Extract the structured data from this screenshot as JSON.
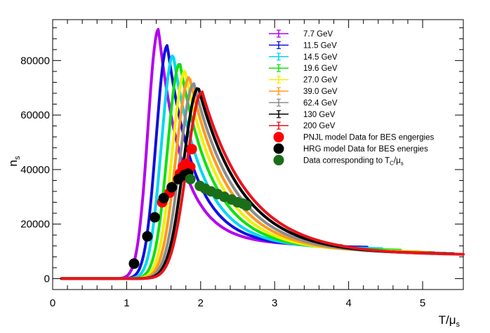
{
  "chart_data": {
    "type": "line",
    "xlabel": "T/μ_s",
    "xlabel_main": "T/μ",
    "xlabel_sub": "s",
    "ylabel": "n_s",
    "ylabel_main": "n",
    "ylabel_sub": "s",
    "xlim": [
      0,
      5.55
    ],
    "ylim": [
      -4000,
      95000
    ],
    "xticks": [
      0,
      1,
      2,
      3,
      4,
      5
    ],
    "yticks": [
      0,
      20000,
      40000,
      60000,
      80000
    ],
    "series": [
      {
        "name": "7.7 GeV",
        "color": "#b400f0",
        "peak_x": 1.43,
        "peak_y": 91500,
        "tail_end_x": 3.9,
        "tail_end_y": 11500
      },
      {
        "name": "11.5 GeV",
        "color": "#1010e0",
        "peak_x": 1.55,
        "peak_y": 85500,
        "tail_end_x": 4.25,
        "tail_end_y": 11000
      },
      {
        "name": "14.5 GeV",
        "color": "#00d8f0",
        "peak_x": 1.63,
        "peak_y": 82000,
        "tail_end_x": 4.45,
        "tail_end_y": 10500
      },
      {
        "name": "19.6 GeV",
        "color": "#10e010",
        "peak_x": 1.72,
        "peak_y": 79000,
        "tail_end_x": 4.7,
        "tail_end_y": 10000
      },
      {
        "name": "27.0 GeV",
        "color": "#f0f000",
        "peak_x": 1.79,
        "peak_y": 76000,
        "tail_end_x": 4.95,
        "tail_end_y": 9500
      },
      {
        "name": "39.0 GeV",
        "color": "#ff9a20",
        "peak_x": 1.85,
        "peak_y": 74000,
        "tail_end_x": 5.15,
        "tail_end_y": 9200
      },
      {
        "name": "62.4 GeV",
        "color": "#8c8c8c",
        "peak_x": 1.91,
        "peak_y": 71500,
        "tail_end_x": 5.3,
        "tail_end_y": 8900
      },
      {
        "name": "130 GeV",
        "color": "#000000",
        "peak_x": 1.97,
        "peak_y": 70000,
        "tail_end_x": 5.42,
        "tail_end_y": 8700
      },
      {
        "name": "200 GeV",
        "color": "#e8141b",
        "peak_x": 2.02,
        "peak_y": 68500,
        "tail_end_x": 5.55,
        "tail_end_y": 8500
      }
    ],
    "markers": [
      {
        "name": "PNJL model Data for BES engergies",
        "color": "#ff0000",
        "points": [
          [
            1.48,
            28000
          ],
          [
            1.58,
            31500
          ],
          [
            1.72,
            38500
          ],
          [
            1.76,
            41000
          ],
          [
            1.8,
            42000
          ],
          [
            1.86,
            41000
          ],
          [
            1.88,
            47500
          ]
        ]
      },
      {
        "name": "HRG model Data for BES energies",
        "color": "#000000",
        "points": [
          [
            1.1,
            5500
          ],
          [
            1.28,
            15500
          ],
          [
            1.38,
            22500
          ],
          [
            1.5,
            29500
          ],
          [
            1.61,
            33500
          ],
          [
            1.7,
            36500
          ],
          [
            1.78,
            38000
          ],
          [
            1.83,
            38500
          ]
        ]
      },
      {
        "name": "Data corresponding to T_C/μ_s",
        "color": "#1a6e1a",
        "points": [
          [
            1.86,
            36500
          ],
          [
            1.99,
            34000
          ],
          [
            2.06,
            33000
          ],
          [
            2.14,
            32000
          ],
          [
            2.23,
            31000
          ],
          [
            2.32,
            30000
          ],
          [
            2.42,
            29000
          ],
          [
            2.5,
            28000
          ],
          [
            2.57,
            27500
          ],
          [
            2.62,
            26800
          ]
        ]
      }
    ],
    "legend": {
      "placement": "top-right",
      "entries": [
        {
          "label": "7.7 GeV",
          "kind": "line",
          "color": "#b400f0"
        },
        {
          "label": "11.5 GeV",
          "kind": "line",
          "color": "#1010e0"
        },
        {
          "label": "14.5 GeV",
          "kind": "line",
          "color": "#00d8f0"
        },
        {
          "label": "19.6 GeV",
          "kind": "line",
          "color": "#10e010"
        },
        {
          "label": "27.0 GeV",
          "kind": "line",
          "color": "#f0f000"
        },
        {
          "label": "39.0 GeV",
          "kind": "line",
          "color": "#ff9a20"
        },
        {
          "label": "62.4 GeV",
          "kind": "line",
          "color": "#8c8c8c"
        },
        {
          "label": "130 GeV",
          "kind": "line",
          "color": "#000000"
        },
        {
          "label": "200 GeV",
          "kind": "line",
          "color": "#e8141b"
        },
        {
          "label": "PNJL model Data for BES engergies",
          "kind": "marker",
          "color": "#ff0000"
        },
        {
          "label": "HRG model Data for BES energies",
          "kind": "marker",
          "color": "#000000"
        },
        {
          "label": "Data corresponding to T",
          "label_sub": "C",
          "label_suffix": "/μ",
          "label_sub2": "s",
          "kind": "marker",
          "color": "#1a6e1a"
        }
      ]
    }
  }
}
